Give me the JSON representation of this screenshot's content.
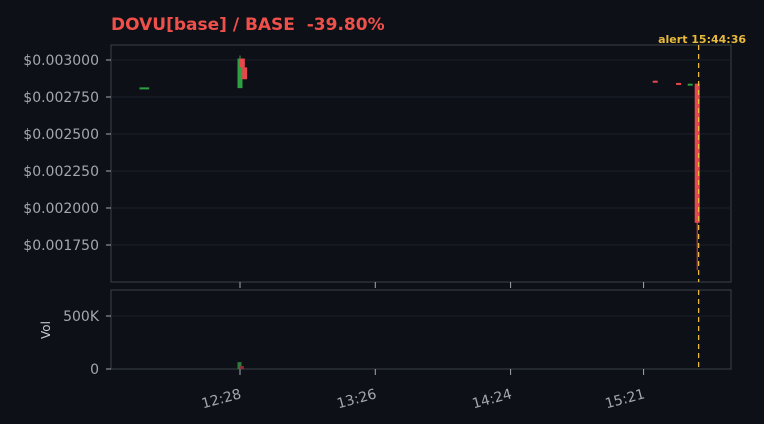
{
  "title": "DOVU[base] / BASE  -39.80%",
  "alert_label": "alert 15:44:36",
  "colors": {
    "up": "#2ea043",
    "down": "#e5484d",
    "alert": "#e8b93a",
    "title": "#f0504a",
    "background": "#0d1017"
  },
  "chart_data": [
    {
      "type": "candlestick",
      "title": "DOVU[base] / BASE  -39.80%",
      "yticks": [
        "$0.003000",
        "$0.002750",
        "$0.002500",
        "$0.002250",
        "$0.002000",
        "$0.001750"
      ],
      "yvalues": [
        0.003,
        0.00275,
        0.0025,
        0.00225,
        0.002,
        0.00175
      ],
      "ylim": [
        0.00151,
        0.0031
      ],
      "xticks": [
        "12:28",
        "13:26",
        "14:24",
        "15:21"
      ],
      "grid": true,
      "candles": [
        {
          "t": "11:46",
          "o": 0.002815,
          "h": 0.002815,
          "l": 0.002815,
          "c": 0.002815
        },
        {
          "t": "11:48",
          "o": 0.002815,
          "h": 0.002815,
          "l": 0.002815,
          "c": 0.002815
        },
        {
          "t": "12:28",
          "o": 0.00281,
          "h": 0.00303,
          "l": 0.00281,
          "c": 0.00301
        },
        {
          "t": "12:29",
          "o": 0.00301,
          "h": 0.00301,
          "l": 0.00295,
          "c": 0.00295
        },
        {
          "t": "12:30",
          "o": 0.00295,
          "h": 0.00295,
          "l": 0.00287,
          "c": 0.00287
        },
        {
          "t": "15:26",
          "o": 0.00286,
          "h": 0.00286,
          "l": 0.00285,
          "c": 0.00285
        },
        {
          "t": "15:36",
          "o": 0.002845,
          "h": 0.002845,
          "l": 0.00284,
          "c": 0.00284
        },
        {
          "t": "15:41",
          "o": 0.00284,
          "h": 0.00284,
          "l": 0.00284,
          "c": 0.00284
        },
        {
          "t": "15:44",
          "o": 0.00284,
          "h": 0.00284,
          "l": 0.00158,
          "c": 0.0019
        }
      ],
      "alert_time": "15:44:36"
    },
    {
      "type": "bar",
      "ylabel": "Vol",
      "yticks": [
        "500K",
        "0"
      ],
      "yvalues": [
        500000,
        0
      ],
      "ylim": [
        0,
        700000
      ],
      "bars": [
        {
          "t": "12:28",
          "v": 65000,
          "dir": "up"
        },
        {
          "t": "12:29",
          "v": 28000,
          "dir": "down"
        }
      ]
    }
  ]
}
